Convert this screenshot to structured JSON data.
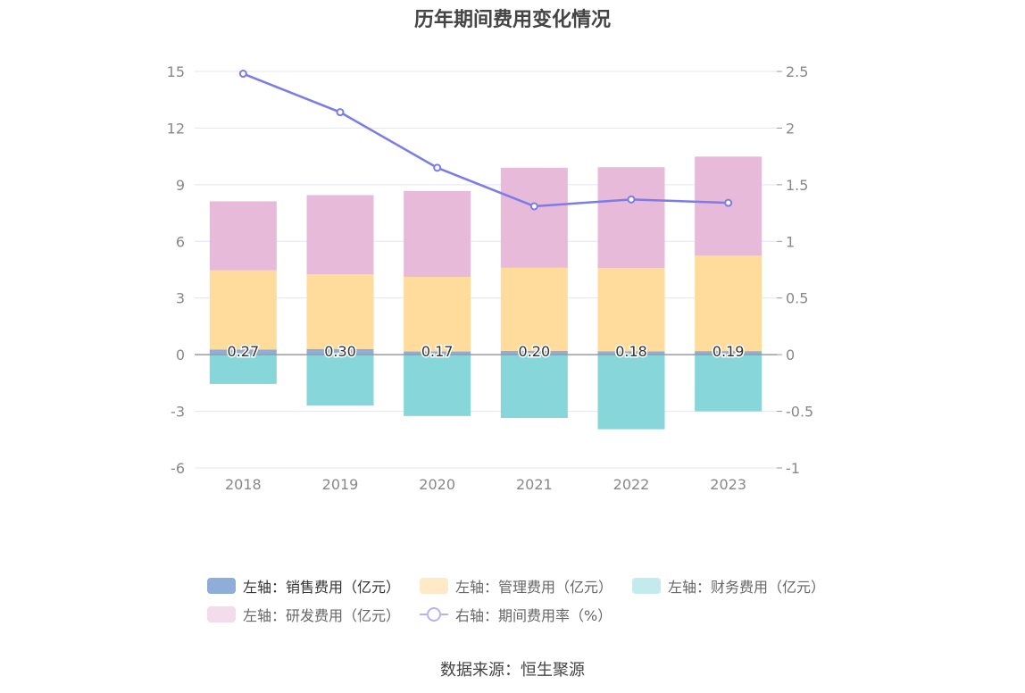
{
  "chart_data": {
    "type": "bar",
    "title": "历年期间费用变化情况",
    "categories": [
      "2018",
      "2019",
      "2020",
      "2021",
      "2022",
      "2023"
    ],
    "left_axis": {
      "ylim": [
        -6,
        15
      ],
      "ticks": [
        15,
        12,
        9,
        6,
        3,
        0,
        -3,
        -6
      ]
    },
    "right_axis": {
      "ylim": [
        -1,
        2.5
      ],
      "ticks": [
        "2.5",
        "2",
        "1.5",
        "1",
        "0.5",
        "0",
        "-0.5",
        "-1"
      ]
    },
    "grid": true,
    "stacked": true,
    "series": [
      {
        "name": "左轴：销售费用（亿元）",
        "axis": "left",
        "color": "#8eadd9",
        "values": [
          0.27,
          0.3,
          0.17,
          0.2,
          0.18,
          0.19
        ],
        "labels": [
          "0.27",
          "0.30",
          "0.17",
          "0.20",
          "0.18",
          "0.19"
        ]
      },
      {
        "name": "左轴：管理费用（亿元）",
        "axis": "left",
        "color": "#ffdb9c",
        "values": [
          4.2,
          3.95,
          3.95,
          4.4,
          4.4,
          5.05
        ]
      },
      {
        "name": "左轴：财务费用（亿元）",
        "axis": "left",
        "color": "#87d6d9",
        "values": [
          -1.55,
          -2.7,
          -3.25,
          -3.35,
          -3.95,
          -3.0
        ]
      },
      {
        "name": "左轴：研发费用（亿元）",
        "axis": "left",
        "color": "#e7bada",
        "values": [
          3.65,
          4.2,
          4.55,
          5.3,
          5.35,
          5.25
        ]
      },
      {
        "name": "右轴：期间费用率（%）",
        "axis": "right",
        "type": "line",
        "color": "#7c7ce8",
        "values": [
          2.48,
          2.14,
          1.65,
          1.31,
          1.37,
          1.34
        ]
      }
    ],
    "legend_position": "bottom"
  },
  "source": "数据来源：恒生聚源"
}
